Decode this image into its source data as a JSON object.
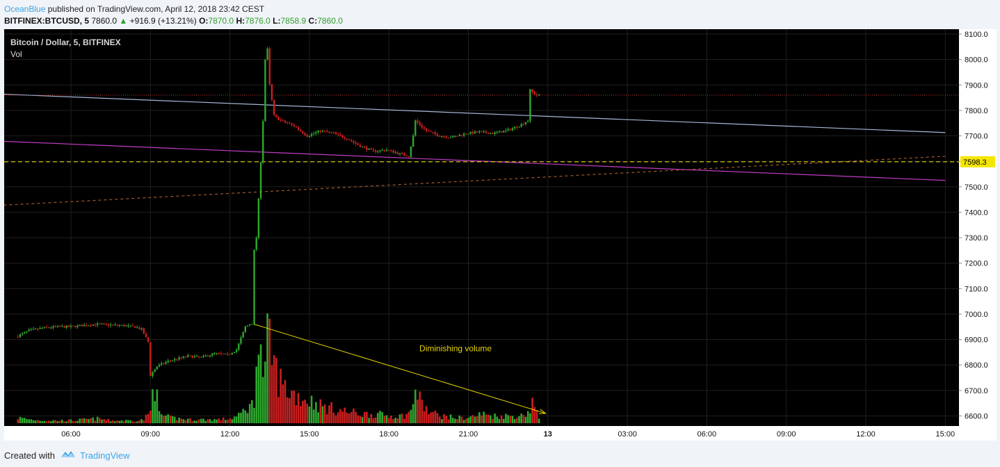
{
  "header": {
    "author": "OceanBlue",
    "published_text": "published on TradingView.com, April 12, 2018 23:42 CEST"
  },
  "ticker": {
    "symbol": "BITFINEX:BTCUSD, 5",
    "last": "7860.0",
    "change": "+916.9 (+13.21%)",
    "o_label": "O:",
    "o": "7870.0",
    "h_label": "H:",
    "h": "7876.0",
    "l_label": "L:",
    "l": "7858.9",
    "c_label": "C:",
    "c": "7860.0",
    "up_color": "#2f9e2f"
  },
  "legend": {
    "title": "Bitcoin / Dollar, 5, BITFINEX",
    "indicator": "Vol"
  },
  "footer": {
    "created_with": "Created with",
    "brand": "TradingView"
  },
  "colors": {
    "background": "#000000",
    "up": "#2ea82e",
    "down": "#cc1f1f",
    "grid": "#1f1f1f",
    "trend_upper": "#a9b8d8",
    "trend_lower": "#c23cc8",
    "support_dashed": "#a05a2c",
    "level_dashed": "#e8d400",
    "annotation": "#e8d400",
    "axis_text": "#111111"
  },
  "chart_data": {
    "type": "candlestick",
    "x_ticks": [
      "06:00",
      "09:00",
      "12:00",
      "15:00",
      "18:00",
      "21:00",
      "13",
      "03:00",
      "06:00",
      "09:00",
      "12:00",
      "15:00"
    ],
    "y_ticks": [
      "8100.0",
      "8000.0",
      "7900.0",
      "7800.0",
      "7700.0",
      "7600.0",
      "7500.0",
      "7400.0",
      "7300.0",
      "7200.0",
      "7100.0",
      "7000.0",
      "6900.0",
      "6800.0",
      "6700.0",
      "6600.0"
    ],
    "ylim": [
      6550,
      8120
    ],
    "price_label": "7598.3",
    "annotation_text": "Diminishing volume",
    "anchors": [
      [
        "04:00",
        6910,
        6
      ],
      [
        "04:30",
        6935,
        4
      ],
      [
        "05:00",
        6945,
        3
      ],
      [
        "05:30",
        6950,
        3
      ],
      [
        "06:00",
        6950,
        3
      ],
      [
        "06:30",
        6955,
        4
      ],
      [
        "07:00",
        6960,
        5
      ],
      [
        "07:30",
        6958,
        3
      ],
      [
        "08:00",
        6955,
        3
      ],
      [
        "08:30",
        6950,
        3
      ],
      [
        "08:45",
        6940,
        4
      ],
      [
        "09:00",
        6890,
        12
      ],
      [
        "09:05",
        6760,
        60
      ],
      [
        "09:20",
        6795,
        10
      ],
      [
        "09:45",
        6815,
        6
      ],
      [
        "10:30",
        6835,
        4
      ],
      [
        "11:00",
        6830,
        4
      ],
      [
        "11:30",
        6845,
        4
      ],
      [
        "12:00",
        6840,
        5
      ],
      [
        "12:20",
        6860,
        8
      ],
      [
        "12:40",
        6950,
        18
      ],
      [
        "12:55",
        6965,
        20
      ],
      [
        "13:00",
        7250,
        110
      ],
      [
        "13:05",
        7300,
        80
      ],
      [
        "13:10",
        7450,
        70
      ],
      [
        "13:15",
        7600,
        60
      ],
      [
        "13:20",
        7760,
        50
      ],
      [
        "13:25",
        8000,
        90
      ],
      [
        "13:30",
        8040,
        80
      ],
      [
        "13:35",
        7900,
        75
      ],
      [
        "13:45",
        7780,
        55
      ],
      [
        "14:00",
        7760,
        40
      ],
      [
        "14:30",
        7740,
        30
      ],
      [
        "15:00",
        7700,
        25
      ],
      [
        "15:30",
        7720,
        18
      ],
      [
        "16:00",
        7710,
        15
      ],
      [
        "16:30",
        7690,
        12
      ],
      [
        "17:00",
        7660,
        10
      ],
      [
        "17:30",
        7640,
        10
      ],
      [
        "18:00",
        7645,
        8
      ],
      [
        "18:30",
        7630,
        8
      ],
      [
        "18:50",
        7620,
        12
      ],
      [
        "19:00",
        7700,
        40
      ],
      [
        "19:05",
        7760,
        28
      ],
      [
        "19:30",
        7720,
        12
      ],
      [
        "20:00",
        7700,
        8
      ],
      [
        "20:30",
        7695,
        6
      ],
      [
        "21:00",
        7710,
        6
      ],
      [
        "21:30",
        7715,
        10
      ],
      [
        "22:00",
        7710,
        8
      ],
      [
        "22:30",
        7720,
        8
      ],
      [
        "23:00",
        7740,
        8
      ],
      [
        "23:20",
        7760,
        14
      ],
      [
        "23:25",
        7880,
        25
      ],
      [
        "23:35",
        7865,
        10
      ],
      [
        "23:40",
        7860,
        5
      ]
    ],
    "trendlines": {
      "upper": [
        [
          "02:00",
          7870
        ],
        [
          "15:00+1",
          7713
        ]
      ],
      "lower": [
        [
          "02:00",
          7685
        ],
        [
          "15:00+1",
          7525
        ]
      ],
      "support": [
        [
          "02:00",
          7420
        ],
        [
          "15:00+1",
          7620
        ]
      ],
      "level": 7598.3
    },
    "volume_arrow": [
      [
        "12:55",
        6960
      ],
      [
        "23:55",
        6610
      ]
    ]
  }
}
